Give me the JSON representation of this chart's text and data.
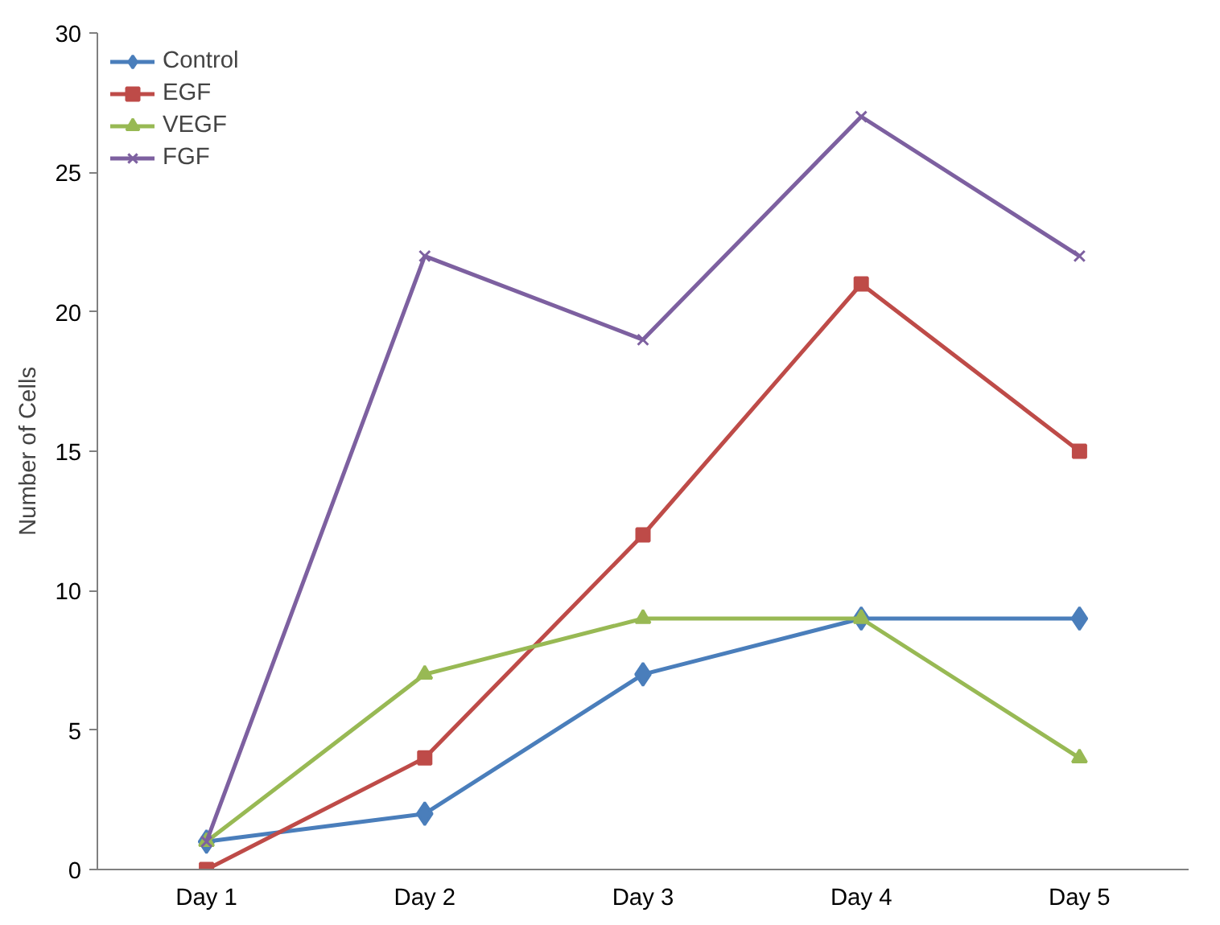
{
  "chart_data": {
    "type": "line",
    "ylabel": "Number of Cells",
    "categories": [
      "Day 1",
      "Day 2",
      "Day 3",
      "Day 4",
      "Day 5"
    ],
    "series": [
      {
        "name": "Control",
        "color": "#4a7ebb",
        "marker": "diamond",
        "values": [
          1,
          2,
          7,
          9,
          9
        ]
      },
      {
        "name": "EGF",
        "color": "#be4b48",
        "marker": "square",
        "values": [
          0,
          4,
          12,
          21,
          15
        ]
      },
      {
        "name": "VEGF",
        "color": "#98b954",
        "marker": "triangle",
        "values": [
          1,
          7,
          9,
          9,
          4
        ]
      },
      {
        "name": "FGF",
        "color": "#7d60a0",
        "marker": "cross",
        "values": [
          1,
          22,
          19,
          27,
          22
        ]
      }
    ],
    "ylim": [
      0,
      30
    ],
    "yticks": [
      0,
      5,
      10,
      15,
      20,
      25,
      30
    ],
    "grid": false,
    "legend": "top left",
    "line_style": "solid"
  }
}
